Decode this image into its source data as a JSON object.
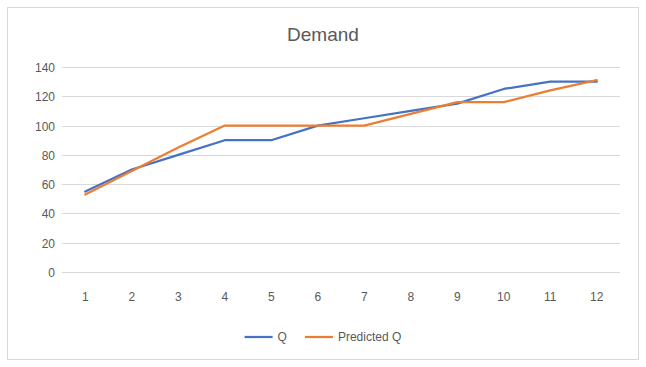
{
  "chart_data": {
    "type": "line",
    "title": "Demand",
    "categories": [
      "1",
      "2",
      "3",
      "4",
      "5",
      "6",
      "7",
      "8",
      "9",
      "10",
      "11",
      "12"
    ],
    "series": [
      {
        "name": "Q",
        "color": "#4472c4",
        "values": [
          55,
          70,
          80,
          90,
          90,
          100,
          105,
          110,
          115,
          125,
          130,
          130
        ]
      },
      {
        "name": "Predicted Q",
        "color": "#ed7d31",
        "values": [
          53,
          69,
          85,
          100,
          100,
          100,
          100,
          108,
          116,
          116,
          124,
          131
        ]
      }
    ],
    "ylim": [
      0,
      140
    ],
    "yticks": [
      0,
      20,
      40,
      60,
      80,
      100,
      120,
      140
    ],
    "grid": true,
    "legend": "bottom"
  }
}
